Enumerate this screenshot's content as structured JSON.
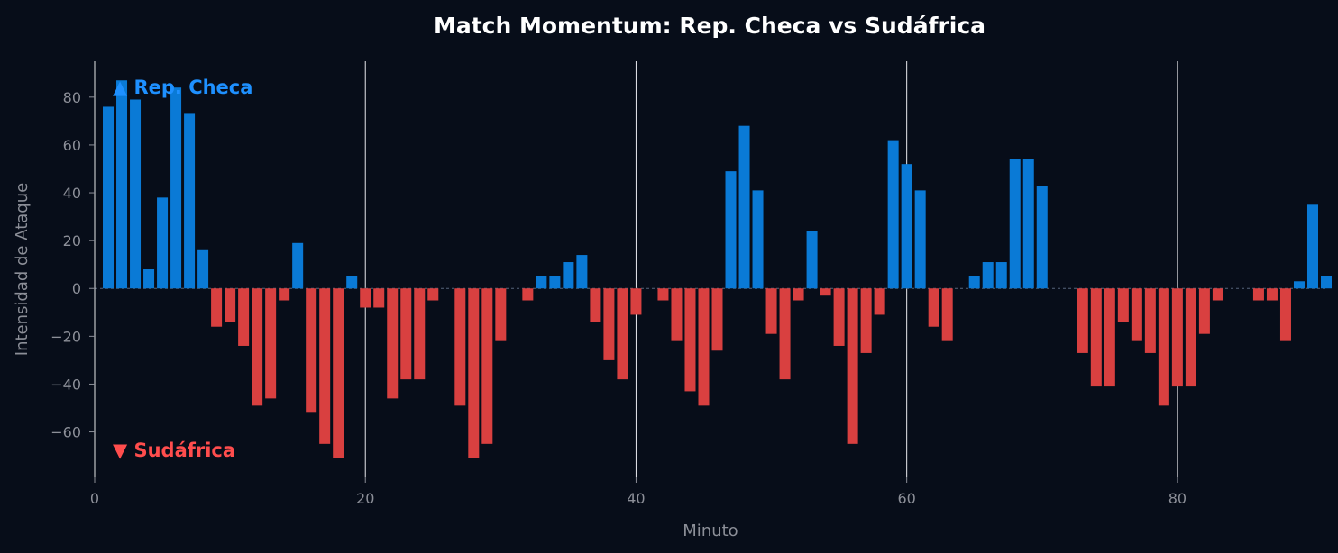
{
  "chart_data": {
    "type": "bar",
    "title": "Match Momentum: Rep. Checa vs Sudáfrica",
    "xlabel": "Minuto",
    "ylabel": "Intensidad de Ataque",
    "xlim": [
      0,
      91
    ],
    "ylim": [
      -79,
      95
    ],
    "xticks": [
      0,
      20,
      40,
      60,
      80
    ],
    "yticks": [
      -60,
      -40,
      -20,
      0,
      20,
      40,
      60,
      80
    ],
    "vlines": [
      20,
      40,
      60,
      80
    ],
    "series": [
      {
        "name": "Rep. Checa",
        "marker": "▲",
        "color": "#0a7ad6",
        "label_color": "#1e90ff",
        "x": [
          1,
          2,
          3,
          4,
          5,
          6,
          7,
          8,
          15,
          19,
          33,
          34,
          35,
          36,
          47,
          48,
          49,
          53,
          59,
          60,
          61,
          65,
          66,
          67,
          68,
          69,
          70,
          89,
          90,
          91
        ],
        "values": [
          76,
          87,
          79,
          8,
          38,
          84,
          73,
          16,
          19,
          5,
          5,
          5,
          11,
          14,
          49,
          68,
          41,
          24,
          62,
          52,
          41,
          5,
          11,
          11,
          54,
          54,
          43,
          3,
          35,
          5
        ]
      },
      {
        "name": "Sudáfrica",
        "marker": "▼",
        "color": "#d94040",
        "label_color": "#ff4d4d",
        "x": [
          9,
          10,
          11,
          12,
          13,
          14,
          16,
          17,
          18,
          20,
          21,
          22,
          23,
          24,
          25,
          27,
          28,
          29,
          30,
          32,
          37,
          38,
          39,
          40,
          42,
          43,
          44,
          45,
          46,
          50,
          51,
          52,
          54,
          55,
          56,
          57,
          58,
          62,
          63,
          73,
          74,
          75,
          76,
          77,
          78,
          79,
          80,
          81,
          82,
          83,
          86,
          87,
          88
        ],
        "values": [
          -16,
          -14,
          -24,
          -49,
          -46,
          -5,
          -52,
          -65,
          -71,
          -8,
          -8,
          -46,
          -38,
          -38,
          -5,
          -49,
          -71,
          -65,
          -22,
          -5,
          -14,
          -30,
          -38,
          -11,
          -5,
          -22,
          -43,
          -49,
          -26,
          -19,
          -38,
          -5,
          -3,
          -24,
          -65,
          -27,
          -11,
          -16,
          -22,
          -27,
          -41,
          -41,
          -14,
          -22,
          -27,
          -49,
          -41,
          -41,
          -19,
          -5,
          -5,
          -5,
          -22
        ]
      }
    ],
    "grid": false,
    "legend": "inside top-left and bottom-left"
  }
}
